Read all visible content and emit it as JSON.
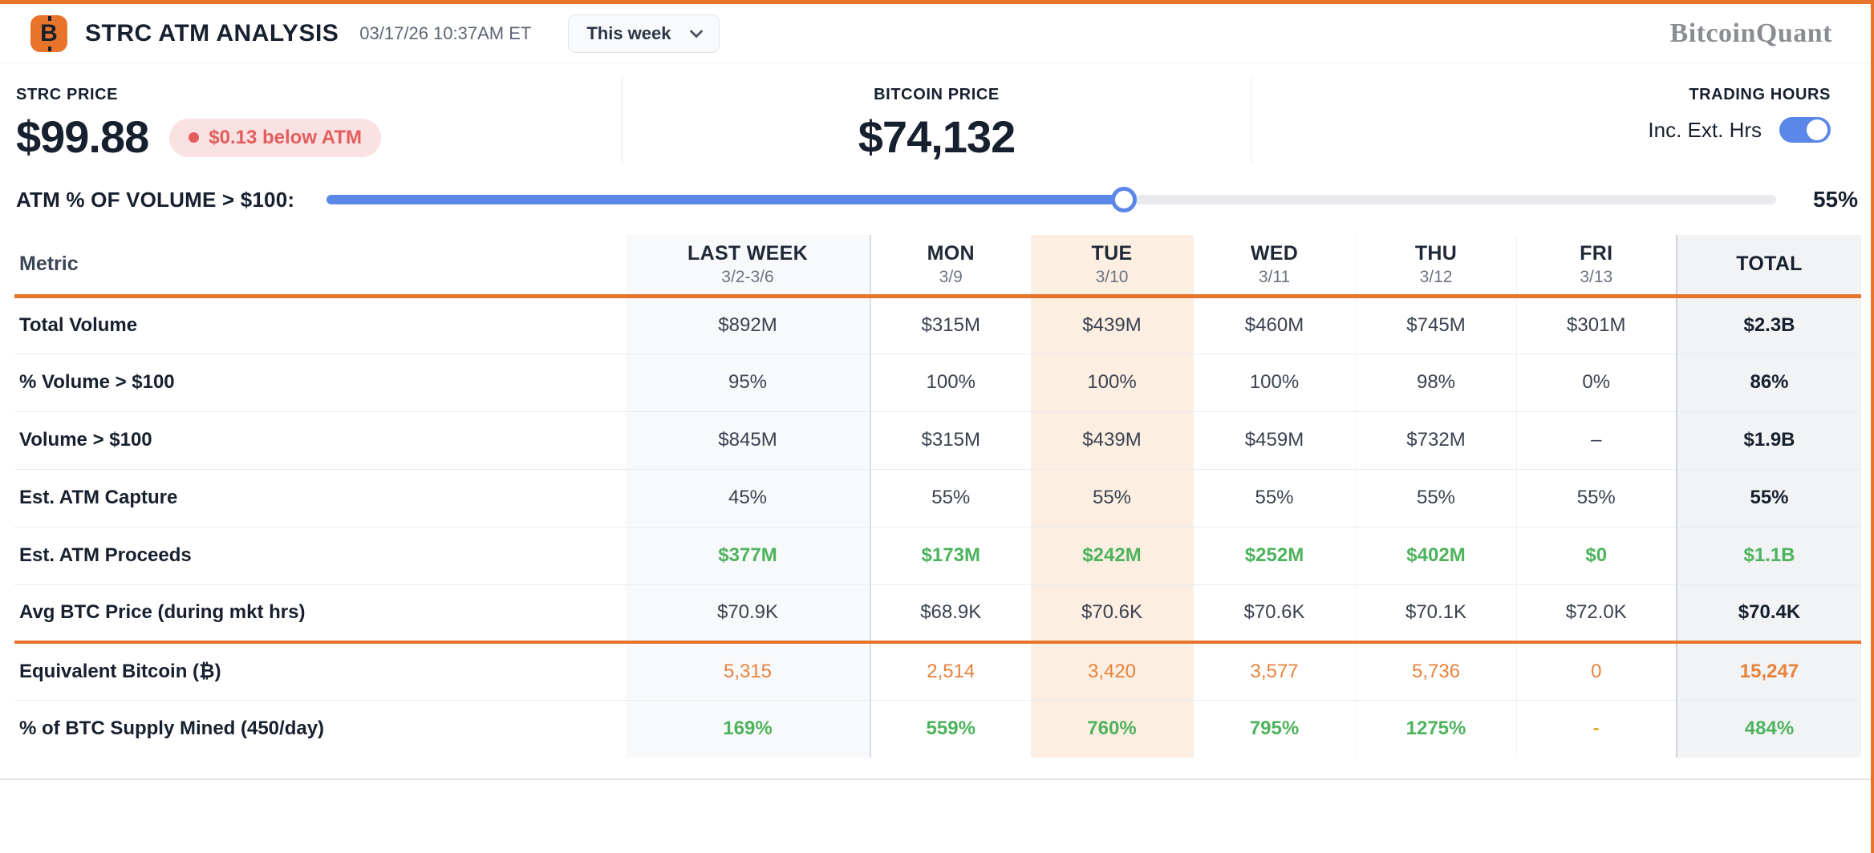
{
  "header": {
    "bitcoin_icon": "B",
    "title": "STRC ATM ANALYSIS",
    "timestamp": "03/17/26 10:37AM ET",
    "period_dropdown": "This week",
    "brand": "BitcoinQuant"
  },
  "stats": {
    "strc_price": {
      "label": "STRC PRICE",
      "value": "$99.88",
      "badge": "$0.13 below ATM"
    },
    "bitcoin_price": {
      "label": "BITCOIN PRICE",
      "value": "$74,132"
    },
    "trading_hours": {
      "label": "TRADING HOURS",
      "toggle_label": "Inc. Ext. Hrs",
      "toggle_state": "on"
    }
  },
  "atm_slider": {
    "label": "ATM % OF VOLUME > $100:",
    "percent": 55,
    "value_label": "55%"
  },
  "table": {
    "metric_header": "Metric",
    "columns": [
      {
        "label": "LAST WEEK",
        "sub": "3/2-3/6"
      },
      {
        "label": "MON",
        "sub": "3/9"
      },
      {
        "label": "TUE",
        "sub": "3/10"
      },
      {
        "label": "WED",
        "sub": "3/11"
      },
      {
        "label": "THU",
        "sub": "3/12"
      },
      {
        "label": "FRI",
        "sub": "3/13"
      },
      {
        "label": "TOTAL",
        "sub": ""
      }
    ],
    "rows": [
      {
        "metric": "Total Volume",
        "values": [
          "$892M",
          "$315M",
          "$439M",
          "$460M",
          "$745M",
          "$301M",
          "$2.3B"
        ]
      },
      {
        "metric": "% Volume > $100",
        "values": [
          "95%",
          "100%",
          "100%",
          "100%",
          "98%",
          "0%",
          "86%"
        ]
      },
      {
        "metric": "Volume > $100",
        "values": [
          "$845M",
          "$315M",
          "$439M",
          "$459M",
          "$732M",
          "–",
          "$1.9B"
        ]
      },
      {
        "metric": "Est. ATM Capture",
        "values": [
          "45%",
          "55%",
          "55%",
          "55%",
          "55%",
          "55%",
          "55%"
        ]
      },
      {
        "metric": "Est. ATM Proceeds",
        "values": [
          "$377M",
          "$173M",
          "$242M",
          "$252M",
          "$402M",
          "$0",
          "$1.1B"
        ]
      },
      {
        "metric": "Avg BTC Price (during mkt hrs)",
        "values": [
          "$70.9K",
          "$68.9K",
          "$70.6K",
          "$70.6K",
          "$70.1K",
          "$72.0K",
          "$70.4K"
        ]
      },
      {
        "metric": "Equivalent Bitcoin (₿)",
        "values": [
          "5,315",
          "2,514",
          "3,420",
          "3,577",
          "5,736",
          "0",
          "15,247"
        ]
      },
      {
        "metric": "% of BTC Supply Mined (450/day)",
        "values": [
          "169%",
          "559%",
          "760%",
          "795%",
          "1275%",
          "-",
          "484%"
        ]
      }
    ]
  },
  "colors": {
    "accent_orange": "#e8742c",
    "positive_green": "#4db35c",
    "bitcoin_value_orange": "#e8813a",
    "slider_blue": "#5b87e8",
    "alert_red": "#e35d5d",
    "amber": "#dfaf35",
    "tue_highlight_bg": "#fcefe2",
    "total_col_bg": "#f1f3f5"
  }
}
